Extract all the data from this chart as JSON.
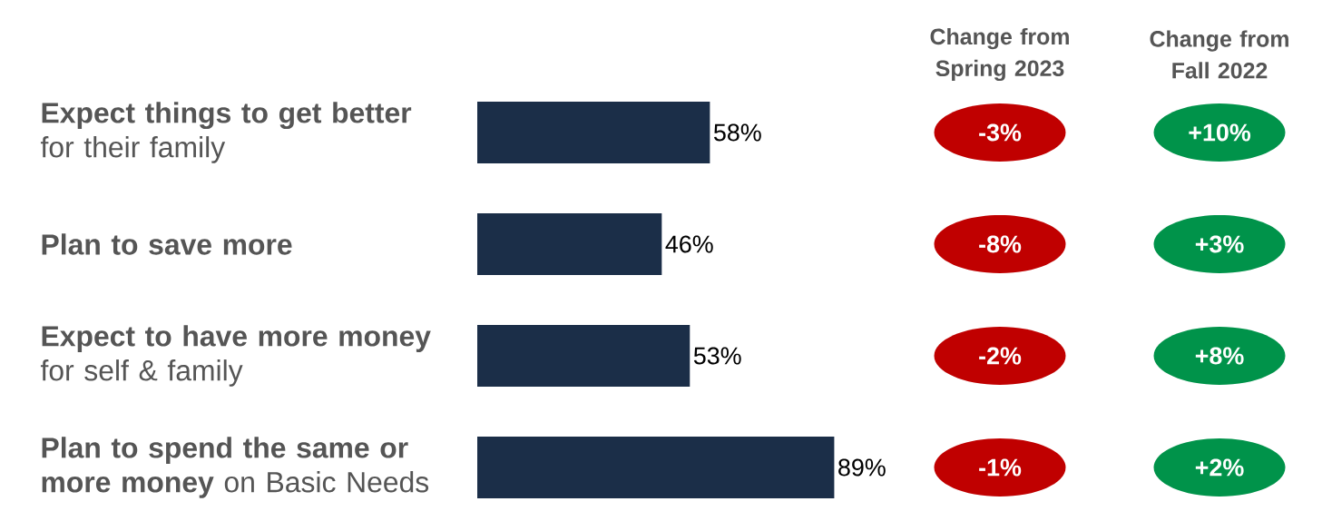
{
  "chart_data": {
    "type": "bar",
    "orientation": "horizontal",
    "categories": [
      "**Expect things to get better** for their family",
      "**Plan to save more**",
      "**Expect to have more money** for self & family",
      "**Plan to spend the same or more money** on Basic Needs"
    ],
    "values": [
      58,
      46,
      53,
      89
    ],
    "color": "#1b2e48",
    "value_labels": [
      "58%",
      "46%",
      "53%",
      "89%"
    ],
    "tick_labels": "y",
    "annotations": [
      "Change from Spring 2023",
      "-3%",
      "-8%",
      "-2%",
      "-1%",
      "Change from Fall 2022",
      "+10%",
      "+3%",
      "+8%",
      "+2%"
    ]
  }
}
